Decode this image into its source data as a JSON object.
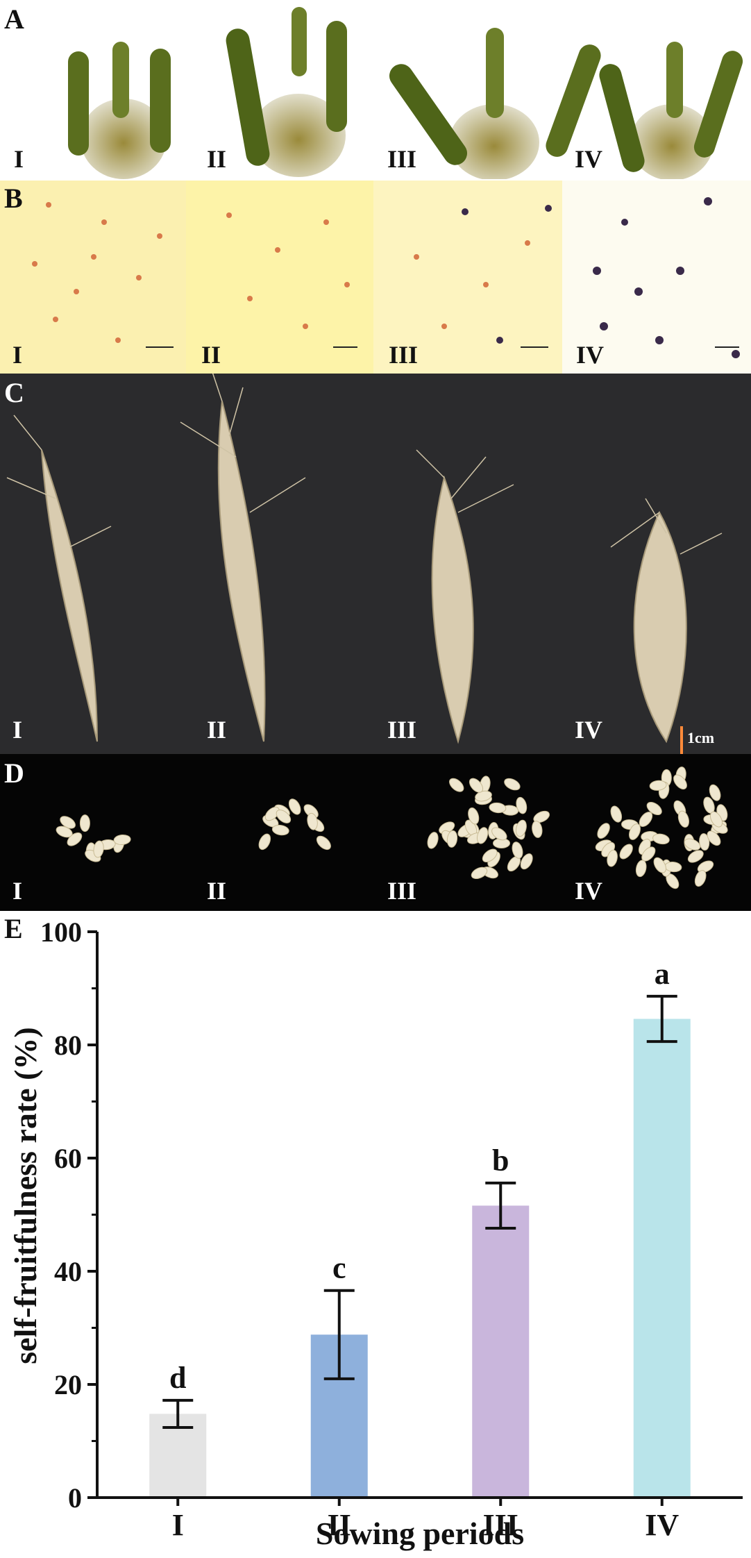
{
  "panels": {
    "A": {
      "letter": "A",
      "labels": [
        "I",
        "II",
        "III",
        "IV"
      ]
    },
    "B": {
      "letter": "B",
      "labels": [
        "I",
        "II",
        "III",
        "IV"
      ]
    },
    "C": {
      "letter": "C",
      "labels": [
        "I",
        "II",
        "III",
        "IV"
      ],
      "scale_text": "1cm"
    },
    "D": {
      "letter": "D",
      "labels": [
        "I",
        "II",
        "III",
        "IV"
      ]
    },
    "E": {
      "letter": "E"
    }
  },
  "colors": {
    "bar_I": "#e4e4e4",
    "bar_II": "#8eb0dc",
    "bar_III": "#c9b6dc",
    "bar_IV": "#b9e4ea"
  },
  "chart_data": {
    "type": "bar",
    "categories": [
      "I",
      "II",
      "III",
      "IV"
    ],
    "values": [
      14.8,
      28.8,
      51.6,
      84.6
    ],
    "errors": [
      2.4,
      7.8,
      4.0,
      4.0
    ],
    "significance": [
      "d",
      "c",
      "b",
      "a"
    ],
    "xlabel": "Sowing periods",
    "ylabel": "self-fruitfulness rate (%)",
    "ylim": [
      0,
      100
    ],
    "yticks": [
      0,
      20,
      40,
      60,
      80,
      100
    ],
    "grid": false,
    "legend": "none"
  }
}
